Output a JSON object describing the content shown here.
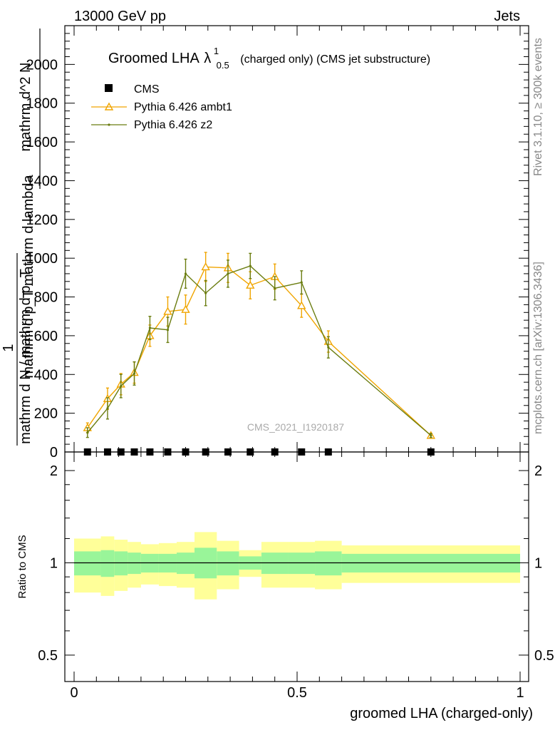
{
  "header": {
    "beam": "13000 GeV pp",
    "process": "Jets"
  },
  "side_labels": {
    "rivet": "Rivet 3.1.10, ≥ 300k events",
    "mcplots": "mcplots.cern.ch [arXiv:1306.3436]"
  },
  "chart_data": {
    "type": "line",
    "title": "Groomed LHA",
    "title_symbol": "λ",
    "title_sup": "1",
    "title_sub": "0.5",
    "title_suffix": "(charged only) (CMS jet substructure)",
    "ylabel_num": "1",
    "ylabel_den": "mathrm d N / mathrm d p_T",
    "ylabel_top_num": "mathrm d^2 N",
    "ylabel_top_den": "mathrm d p_T mathrm d lambda",
    "ylabel_full": "1 / mathrm d N / mathrm d p_T  mathrm d N / mathrm d p_T mathrm d lambda",
    "ylabel_line1": "mathrm d N / mathrm d p_T mathrm d lambda",
    "xlabel": "groomed LHA (charged-only)",
    "ratio_ylabel": "Ratio to CMS",
    "watermark": "CMS_2021_I1920187",
    "xlim": [
      0,
      1
    ],
    "ylim": [
      0,
      2200
    ],
    "ratio_ylim": [
      0.41,
      2.3
    ],
    "x_ticks": [
      0,
      0.5,
      1
    ],
    "x_tick_labels": [
      "0",
      "0.5",
      "1"
    ],
    "y_ticks": [
      0,
      200,
      400,
      600,
      800,
      1000,
      1200,
      1400,
      1600,
      1800,
      2000
    ],
    "y_tick_labels": [
      "0",
      "200",
      "400",
      "600",
      "800",
      "1000",
      "1200",
      "1400",
      "1600",
      "1800",
      "2000"
    ],
    "ratio_ticks": [
      0.5,
      1,
      2
    ],
    "ratio_tick_labels": [
      "0.5",
      "1",
      "2"
    ],
    "bin_edges": [
      0,
      0.06,
      0.09,
      0.12,
      0.15,
      0.19,
      0.23,
      0.27,
      0.32,
      0.37,
      0.42,
      0.48,
      0.54,
      0.6,
      1.0
    ],
    "x": [
      0.03,
      0.075,
      0.105,
      0.135,
      0.17,
      0.21,
      0.25,
      0.295,
      0.345,
      0.395,
      0.45,
      0.51,
      0.57,
      0.8
    ],
    "series": [
      {
        "name": "CMS",
        "color": "#000000",
        "marker": "square",
        "values": [
          0,
          0,
          0,
          0,
          0,
          0,
          0,
          0,
          0,
          0,
          0,
          0,
          0,
          0
        ],
        "errors": [
          0,
          0,
          0,
          0,
          0,
          0,
          0,
          0,
          0,
          0,
          0,
          0,
          0,
          0
        ]
      },
      {
        "name": "Pythia 6.426 ambt1",
        "color": "#f0a500",
        "marker": "triangle",
        "values": [
          125,
          275,
          350,
          410,
          600,
          725,
          735,
          955,
          950,
          860,
          905,
          755,
          570,
          85
        ],
        "errors": [
          25,
          55,
          55,
          55,
          55,
          75,
          75,
          75,
          75,
          70,
          65,
          60,
          55,
          10
        ]
      },
      {
        "name": "Pythia 6.426 z2",
        "color": "#6b7d10",
        "marker": "dot",
        "values": [
          100,
          225,
          340,
          405,
          640,
          630,
          920,
          820,
          920,
          960,
          845,
          875,
          540,
          85
        ],
        "errors": [
          25,
          55,
          60,
          60,
          60,
          65,
          75,
          65,
          70,
          65,
          60,
          60,
          55,
          10
        ]
      }
    ],
    "ratio_bands": {
      "inner_color": "#99f599",
      "outer_color": "#ffff99",
      "inner_lo": [
        0.91,
        0.9,
        0.91,
        0.92,
        0.93,
        0.93,
        0.92,
        0.89,
        0.91,
        0.95,
        0.92,
        0.92,
        0.91,
        0.93
      ],
      "inner_hi": [
        1.09,
        1.1,
        1.09,
        1.08,
        1.07,
        1.07,
        1.08,
        1.12,
        1.09,
        1.05,
        1.08,
        1.08,
        1.09,
        1.07
      ],
      "outer_lo": [
        0.8,
        0.78,
        0.81,
        0.83,
        0.85,
        0.84,
        0.83,
        0.76,
        0.82,
        0.9,
        0.83,
        0.83,
        0.82,
        0.86
      ],
      "outer_hi": [
        1.2,
        1.22,
        1.19,
        1.17,
        1.15,
        1.16,
        1.17,
        1.26,
        1.18,
        1.1,
        1.17,
        1.17,
        1.18,
        1.14
      ]
    }
  }
}
